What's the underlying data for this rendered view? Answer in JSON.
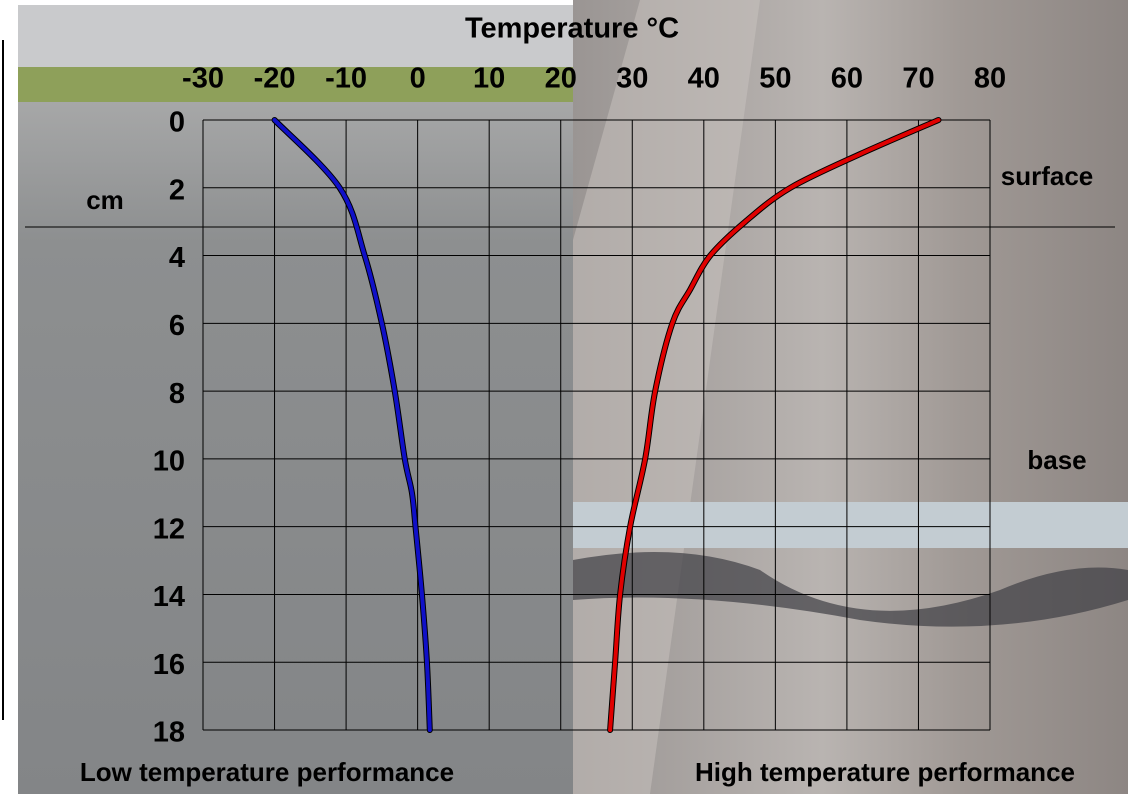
{
  "chart_data": {
    "type": "line",
    "title": "Temperature °C",
    "y_label": "cm",
    "annotations": [
      "surface",
      "base"
    ],
    "panel_labels": [
      "Low temperature performance",
      "High temperature performance"
    ],
    "xlim": [
      -30,
      80
    ],
    "xticks": [
      -30,
      -20,
      -10,
      0,
      10,
      20,
      30,
      40,
      50,
      60,
      70,
      80
    ],
    "ylim": [
      0,
      18
    ],
    "y_inverted": true,
    "yticks": [
      0,
      2,
      4,
      6,
      8,
      10,
      12,
      14,
      16,
      18
    ],
    "grid": true,
    "series": [
      {
        "color": "#1010c8",
        "x": [
          -20,
          -10.9,
          -7.4,
          -5,
          -3.2,
          -1.8,
          -0.8,
          -0.3,
          0.6,
          1.3,
          1.7
        ],
        "values": [
          0,
          2,
          4,
          6,
          8,
          10,
          11,
          12,
          14,
          16,
          18
        ]
      },
      {
        "color": "#e00000",
        "x": [
          72.8,
          61.9,
          52.1,
          45.8,
          40.9,
          38.1,
          35.6,
          33.2,
          31.8,
          29.7,
          28.3,
          27.6,
          26.9
        ],
        "values": [
          0,
          1,
          2,
          3,
          4,
          5,
          6,
          8,
          10,
          12,
          14,
          16,
          18
        ]
      }
    ]
  }
}
